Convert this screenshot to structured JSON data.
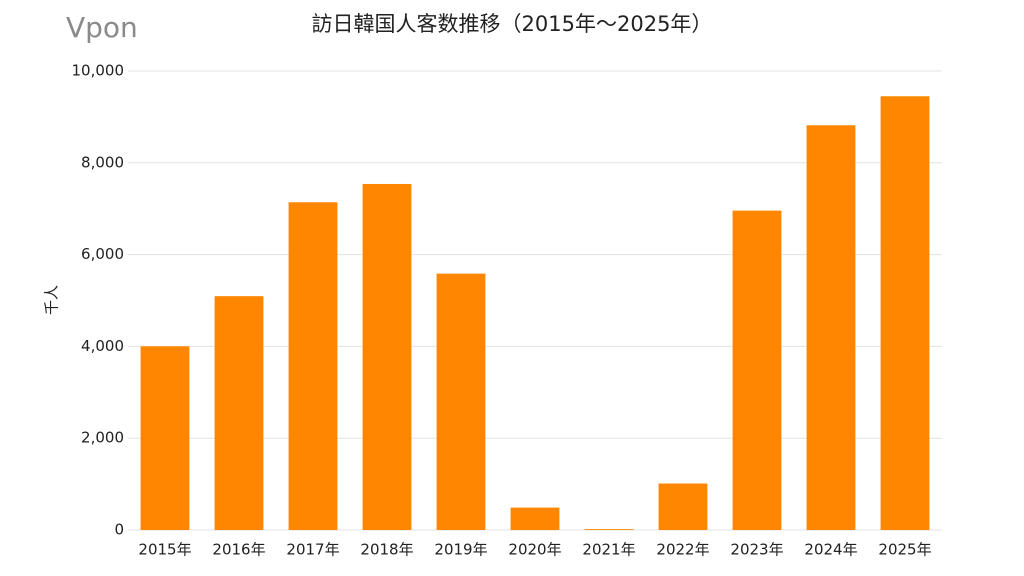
{
  "logo": "Vpon",
  "chart_data": {
    "type": "bar",
    "title": "訪日韓国人客数推移（2015年～2025年）",
    "y_label": "千人",
    "categories": [
      "2015年",
      "2016年",
      "2017年",
      "2018年",
      "2019年",
      "2020年",
      "2021年",
      "2022年",
      "2023年",
      "2024年",
      "2025年"
    ],
    "values": [
      4002,
      5094,
      7140,
      7539,
      5585,
      488,
      19,
      1013,
      6958,
      8818,
      9450
    ],
    "color": "#ff8600",
    "ylim": [
      0,
      10000
    ],
    "yticks": [
      0,
      {
        "value": 2000,
        "label": "2,000"
      },
      {
        "value": 4000,
        "label": "4,000"
      },
      {
        "value": 6000,
        "label": "6,000"
      },
      {
        "value": 8000,
        "label": "8,000"
      },
      {
        "value": 10000,
        "label": "10,000"
      }
    ],
    "grid": true
  }
}
